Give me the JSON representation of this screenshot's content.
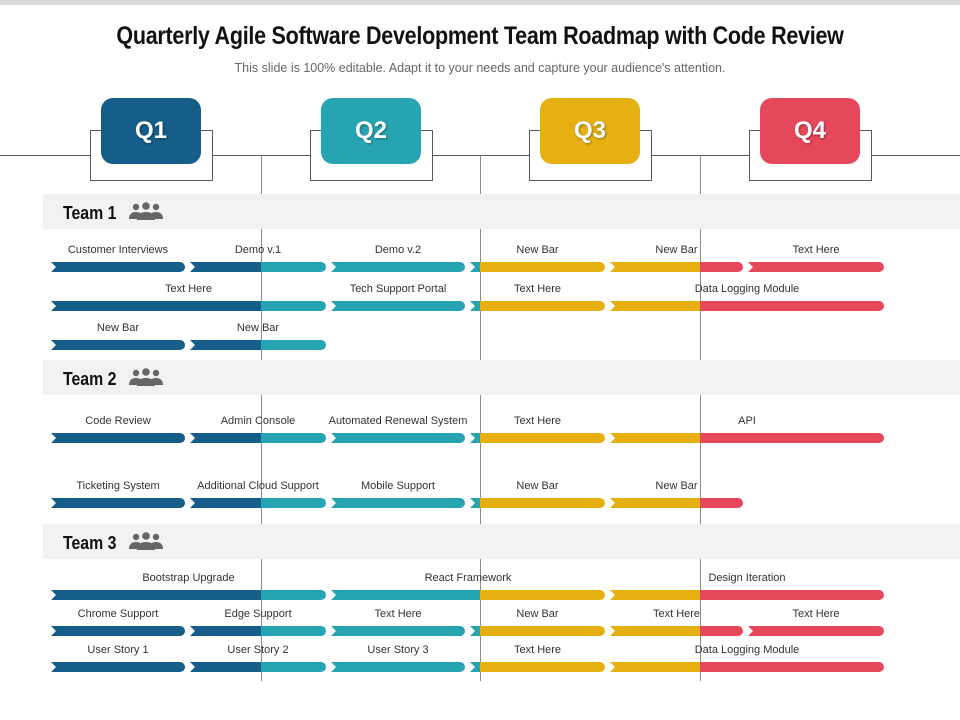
{
  "header": {
    "title": "Quarterly Agile Software Development Team Roadmap with Code Review",
    "subtitle": "This slide is 100% editable. Adapt it to your needs and capture your audience's attention."
  },
  "quarters": [
    {
      "label": "Q1",
      "color": "#155e8a"
    },
    {
      "label": "Q2",
      "color": "#26a4b1"
    },
    {
      "label": "Q3",
      "color": "#e6b012"
    },
    {
      "label": "Q4",
      "color": "#e5485a"
    }
  ],
  "teams": [
    {
      "name": "Team 1",
      "icon": "people-group-icon",
      "rows": [
        [
          {
            "label": "Customer Interviews",
            "start": 1,
            "end": 1
          },
          {
            "label": "Demo v.1",
            "start": 2,
            "end": 2
          },
          {
            "label": "Demo v.2",
            "start": 3,
            "end": 3
          },
          {
            "label": "New Bar",
            "start": 4,
            "end": 4
          },
          {
            "label": "New Bar",
            "start": 5,
            "end": 5
          },
          {
            "label": "Text Here",
            "start": 6,
            "end": 6
          }
        ],
        [
          {
            "label": "Text Here",
            "start": 1,
            "end": 2
          },
          {
            "label": "Tech Support Portal",
            "start": 3,
            "end": 3
          },
          {
            "label": "Text Here",
            "start": 4,
            "end": 4
          },
          {
            "label": "Data Logging Module",
            "start": 5,
            "end": 6
          }
        ],
        [
          {
            "label": "New Bar",
            "start": 1,
            "end": 1
          },
          {
            "label": "New Bar",
            "start": 2,
            "end": 2
          }
        ]
      ]
    },
    {
      "name": "Team 2",
      "icon": "people-group-icon",
      "rows": [
        [
          {
            "label": "Code Review",
            "start": 1,
            "end": 1
          },
          {
            "label": "Admin Console",
            "start": 2,
            "end": 2
          },
          {
            "label": "Automated Renewal System",
            "start": 3,
            "end": 3
          },
          {
            "label": "Text Here",
            "start": 4,
            "end": 4
          },
          {
            "label": "API",
            "start": 5,
            "end": 6
          }
        ],
        [
          {
            "label": "Ticketing System",
            "start": 1,
            "end": 1
          },
          {
            "label": "Additional Cloud Support",
            "start": 2,
            "end": 2
          },
          {
            "label": "Mobile Support",
            "start": 3,
            "end": 3
          },
          {
            "label": "New Bar",
            "start": 4,
            "end": 4
          },
          {
            "label": "New Bar",
            "start": 5,
            "end": 5
          }
        ]
      ]
    },
    {
      "name": "Team 3",
      "icon": "people-group-icon",
      "rows": [
        [
          {
            "label": "Bootstrap Upgrade",
            "start": 1,
            "end": 2
          },
          {
            "label": "React Framework",
            "start": 3,
            "end": 4
          },
          {
            "label": "Design Iteration",
            "start": 5,
            "end": 6
          }
        ],
        [
          {
            "label": "Chrome Support",
            "start": 1,
            "end": 1
          },
          {
            "label": "Edge Support",
            "start": 2,
            "end": 2
          },
          {
            "label": "Text Here",
            "start": 3,
            "end": 3
          },
          {
            "label": "New Bar",
            "start": 4,
            "end": 4
          },
          {
            "label": "Text Here",
            "start": 5,
            "end": 5
          },
          {
            "label": "Text Here",
            "start": 6,
            "end": 6
          }
        ],
        [
          {
            "label": "User Story 1",
            "start": 1,
            "end": 1
          },
          {
            "label": "User Story 2",
            "start": 2,
            "end": 2
          },
          {
            "label": "User Story 3",
            "start": 3,
            "end": 3
          },
          {
            "label": "Text Here",
            "start": 4,
            "end": 4
          },
          {
            "label": "Data Logging Module",
            "start": 5,
            "end": 6
          }
        ]
      ]
    }
  ]
}
